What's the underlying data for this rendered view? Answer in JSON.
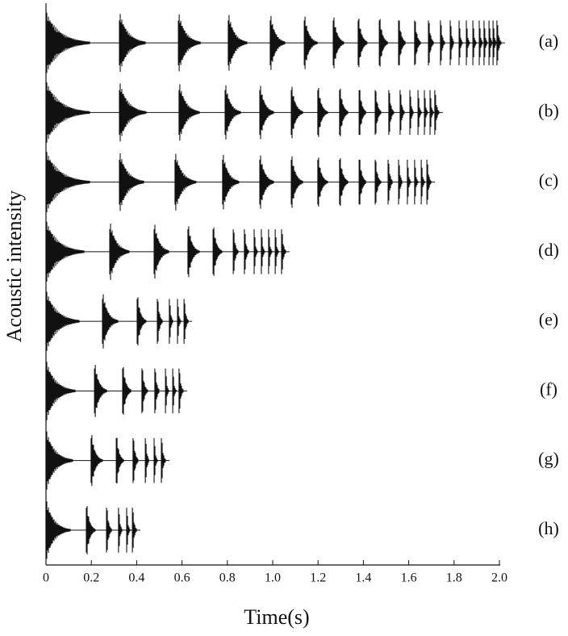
{
  "chart_data": {
    "type": "impact-trace",
    "xlabel": "Time(s)",
    "ylabel": "Acoustic intensity",
    "xlim": [
      0,
      2.0
    ],
    "xticks": [
      0,
      0.2,
      0.4,
      0.6,
      0.8,
      {
        "value": 1,
        "label": "1.0"
      },
      1.2,
      1.4,
      1.6,
      1.8,
      {
        "value": 2,
        "label": "2.0"
      }
    ],
    "color": "#111111",
    "series": [
      {
        "name": "(a)",
        "x": [
          0,
          0.324,
          0.584,
          0.804,
          0.989,
          1.139,
          1.267,
          1.377,
          1.47,
          1.555,
          1.626,
          1.687,
          1.74,
          1.783,
          1.822,
          1.854,
          1.883,
          1.911,
          1.932,
          1.954,
          1.972,
          1.989
        ]
      },
      {
        "name": "(b)",
        "x": [
          0,
          0.324,
          0.587,
          0.79,
          0.943,
          1.082,
          1.199,
          1.295,
          1.381,
          1.452,
          1.512,
          1.562,
          1.605,
          1.641,
          1.669,
          1.694,
          1.715
        ]
      },
      {
        "name": "(c)",
        "x": [
          0,
          0.324,
          0.569,
          0.779,
          0.943,
          1.082,
          1.199,
          1.295,
          1.381,
          1.452,
          1.509,
          1.555,
          1.594,
          1.626,
          1.655,
          1.68
        ]
      },
      {
        "name": "(d)",
        "x": [
          0,
          0.281,
          0.477,
          0.626,
          0.737,
          0.826,
          0.875,
          0.918,
          0.95,
          0.982,
          1.011,
          1.039
        ]
      },
      {
        "name": "(e)",
        "x": [
          0,
          0.249,
          0.402,
          0.491,
          0.544,
          0.58,
          0.609
        ]
      },
      {
        "name": "(f)",
        "x": [
          0,
          0.214,
          0.338,
          0.423,
          0.48,
          0.527,
          0.559,
          0.587
        ]
      },
      {
        "name": "(g)",
        "x": [
          0,
          0.199,
          0.31,
          0.384,
          0.438,
          0.477,
          0.509
        ]
      },
      {
        "name": "(h)",
        "x": [
          0,
          0.178,
          0.267,
          0.32,
          0.356,
          0.381
        ]
      }
    ]
  }
}
